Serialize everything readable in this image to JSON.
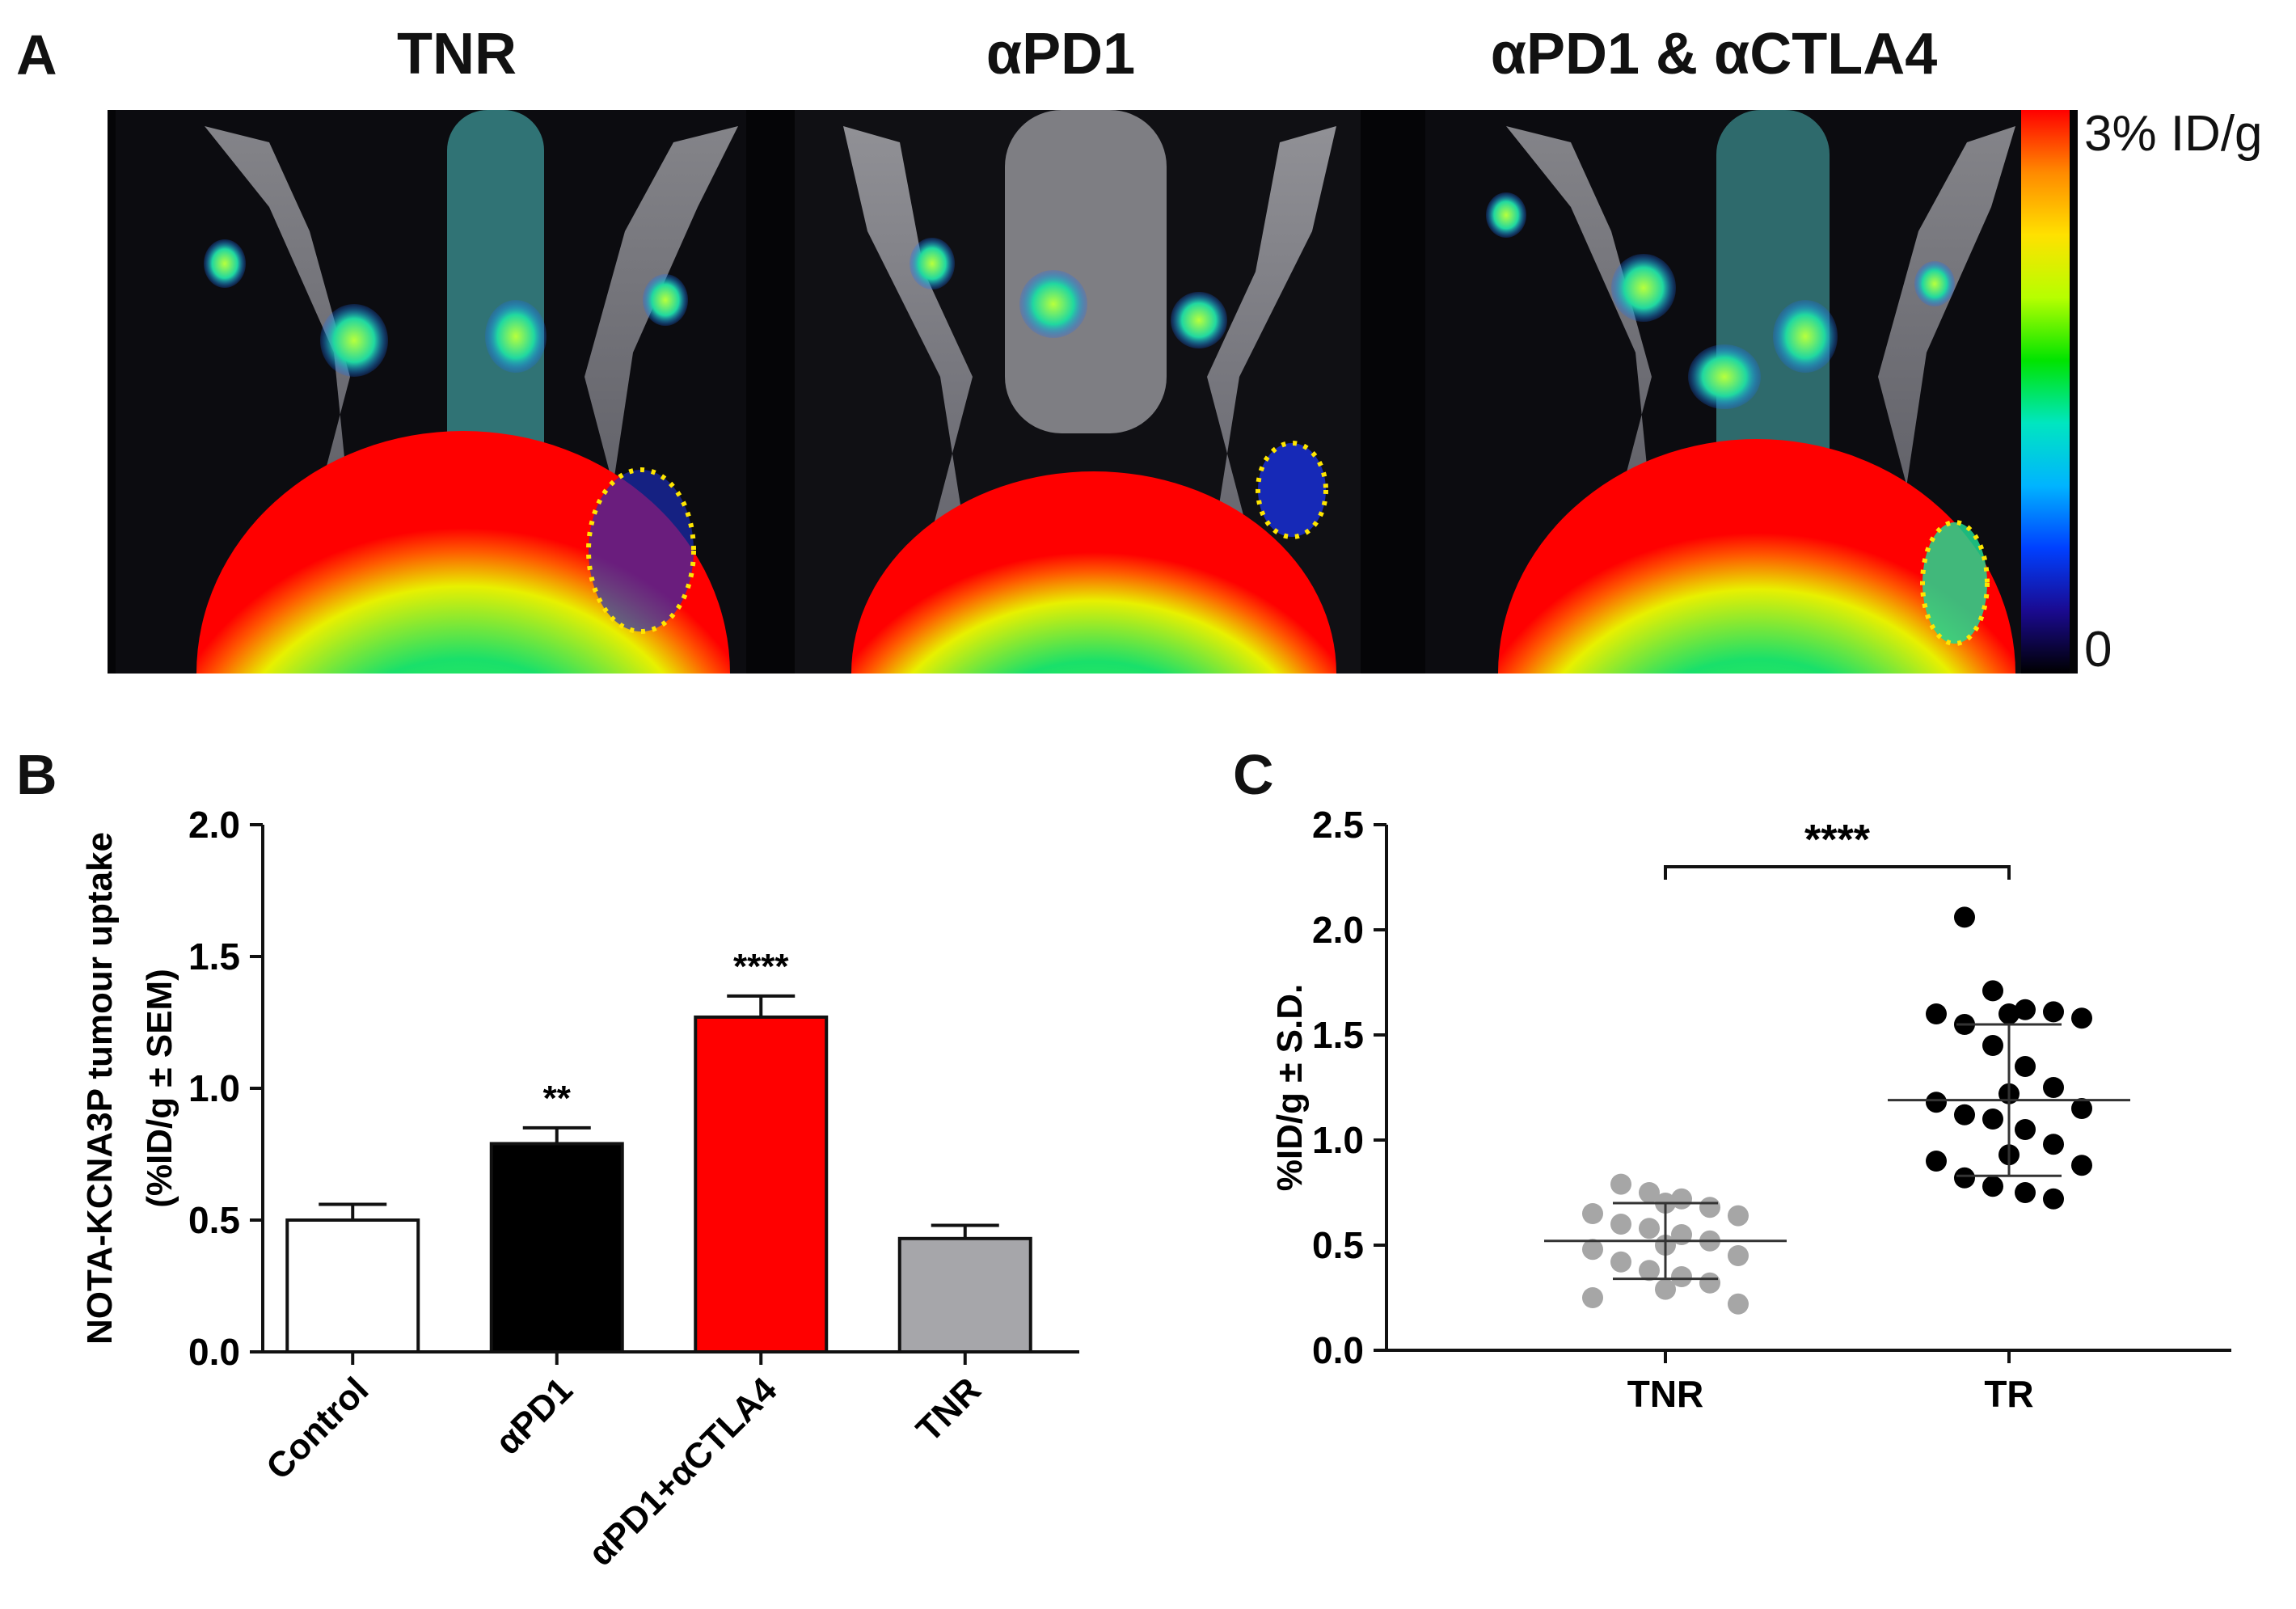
{
  "panels": {
    "a": {
      "letter": "A",
      "titles": [
        "TNR",
        "αPD1",
        "αPD1 & αCTLA4"
      ],
      "colorbar": {
        "max_label": "3% ID/g",
        "min_label": "0"
      }
    },
    "b": {
      "letter": "B"
    },
    "c": {
      "letter": "C"
    }
  },
  "chart_data": [
    {
      "type": "bar",
      "panel": "B",
      "title": "",
      "ylabel": "NOTA-KCNA3P tumour uptake",
      "ylabel2": "(%ID/g ± SEM)",
      "xlabel": "",
      "ylim": [
        0,
        2.0
      ],
      "yticks": [
        "0.0",
        "0.5",
        "1.0",
        "1.5",
        "2.0"
      ],
      "categories": [
        "Control",
        "αPD1",
        "αPD1+αCTLA4",
        "TNR"
      ],
      "values": [
        0.5,
        0.79,
        1.27,
        0.43
      ],
      "errors": [
        0.06,
        0.06,
        0.08,
        0.05
      ],
      "significance": [
        "",
        "**",
        "****",
        ""
      ],
      "colors": [
        "#ffffff",
        "#000000",
        "#ff0000",
        "#a6a6aa"
      ]
    },
    {
      "type": "scatter",
      "panel": "C",
      "title": "",
      "ylabel": "%ID/g ± S.D.",
      "xlabel": "",
      "ylim": [
        0,
        2.5
      ],
      "yticks": [
        "0.0",
        "0.5",
        "1.0",
        "1.5",
        "2.0",
        "2.5"
      ],
      "categories": [
        "TNR",
        "TR"
      ],
      "significance": "****",
      "series": [
        {
          "category": "TNR",
          "color": "#a6a6a6",
          "mean": 0.52,
          "sd": 0.18,
          "values": [
            0.79,
            0.75,
            0.72,
            0.68,
            0.7,
            0.65,
            0.64,
            0.6,
            0.58,
            0.55,
            0.52,
            0.5,
            0.48,
            0.45,
            0.42,
            0.38,
            0.35,
            0.32,
            0.29,
            0.25,
            0.22
          ]
        },
        {
          "category": "TR",
          "color": "#000000",
          "mean": 1.19,
          "sd": 0.36,
          "values": [
            2.06,
            1.71,
            1.62,
            1.61,
            1.6,
            1.6,
            1.58,
            1.55,
            1.45,
            1.35,
            1.25,
            1.22,
            1.18,
            1.15,
            1.12,
            1.1,
            1.05,
            0.98,
            0.93,
            0.9,
            0.88,
            0.82,
            0.78,
            0.75,
            0.72
          ]
        }
      ]
    }
  ]
}
